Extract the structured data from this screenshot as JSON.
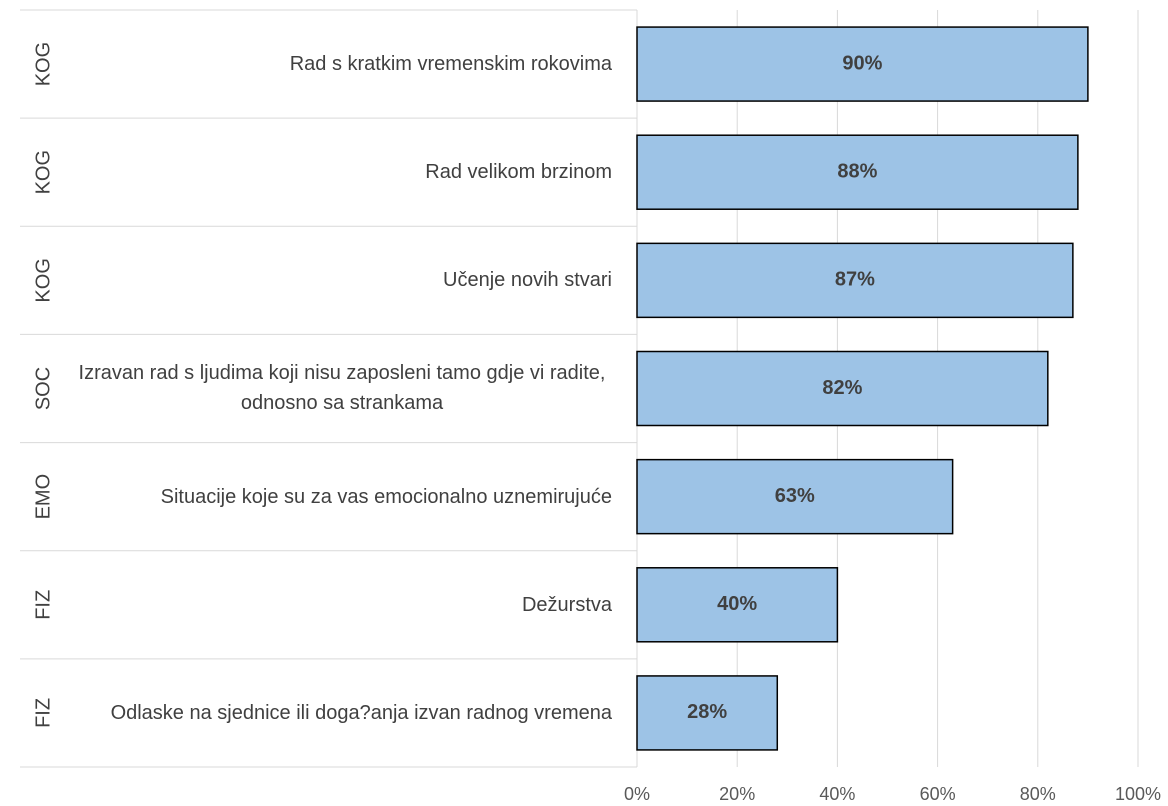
{
  "chart_data": {
    "type": "bar",
    "orientation": "horizontal",
    "groups": [
      "KOG",
      "KOG",
      "KOG",
      "SOC",
      "EMO",
      "FIZ",
      "FIZ"
    ],
    "categories": [
      "Rad s kratkim vremenskim rokovima",
      "Rad velikom brzinom",
      "Učenje novih stvari",
      "Izravan rad s ljudima koji nisu zaposleni tamo gdje vi radite, odnosno sa strankama",
      "Situacije koje su za vas emocionalno uznemirujuće",
      "Dežurstva",
      "Odlaske na sjednice ili doga?anja izvan radnog vremena"
    ],
    "values": [
      90,
      88,
      87,
      82,
      63,
      40,
      28
    ],
    "value_labels": [
      "90%",
      "88%",
      "87%",
      "82%",
      "63%",
      "40%",
      "28%"
    ],
    "color": "#9dc3e6",
    "xlim": [
      0,
      100
    ],
    "xticks": [
      {
        "value": 0,
        "label": "0%"
      },
      {
        "value": 20,
        "label": "20%"
      },
      {
        "value": 40,
        "label": "40%"
      },
      {
        "value": 60,
        "label": "60%"
      },
      {
        "value": 80,
        "label": "80%"
      },
      {
        "value": 100,
        "label": "100%"
      }
    ],
    "grid": true
  }
}
